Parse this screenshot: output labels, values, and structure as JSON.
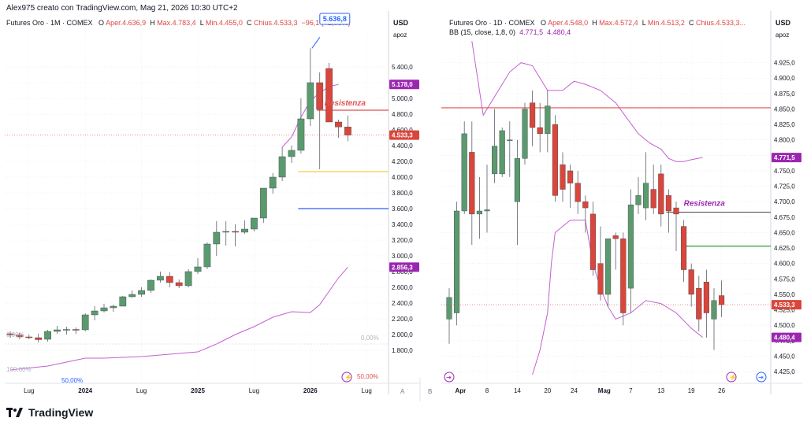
{
  "header": {
    "text": "Alex975 creato con TradingView.com, Mag 21, 2026 10:30 UTC+2"
  },
  "brand": {
    "name": "TradingView"
  },
  "colors": {
    "up": "#5b9a6e",
    "down": "#d9463b",
    "bb": "#c45fd1",
    "res": "#e05252",
    "tag_res": "#9b27b0"
  },
  "left": {
    "legend": {
      "symbol": "Futures Oro · 1M · COMEX",
      "o_label": "O",
      "o": "Aper.4.636,9",
      "h_label": "H",
      "h": "Max.4.783,4",
      "l_label": "L",
      "l": "Min.4.455,0",
      "c_label": "C",
      "c": "Chius.4.533,3",
      "chg": "−96,1 (−2,08%)"
    },
    "currency": "USD",
    "scale_mode": "apoz",
    "res_label": "Resistenza",
    "top_tag": "5.636,8",
    "badges": {
      "price": "4.533,3",
      "bb_upper": "5.178,0",
      "bb_lower": "2.856,3"
    },
    "pct": {
      "p0_left": "0,00%",
      "p0_right": "0,00%",
      "p100": "100,00%",
      "p50_bottom": "50,00%",
      "p50_right": "50,00%"
    },
    "axis_bottom": "A",
    "chart_data": {
      "type": "candlestick",
      "title": "Futures Oro · 1M · COMEX",
      "timeframe": "1M",
      "ylim": [
        1600,
        5800
      ],
      "yticks": [
        1800,
        2000,
        2200,
        2400,
        2600,
        2800,
        3000,
        3200,
        3400,
        3600,
        3800,
        4000,
        4200,
        4400,
        4600,
        4800,
        5000,
        5200,
        5400
      ],
      "ytick_labels": [
        "1.800,0",
        "2.000,0",
        "2.200,0",
        "2.400,0",
        "2.600,0",
        "2.800,0",
        "3.000,0",
        "3.200,0",
        "3.400,0",
        "3.600,0",
        "3.800,0",
        "4.000,0",
        "4.200,0",
        "4.400,0",
        "4.600,0",
        "4.800,0",
        "5.000,0",
        "5.200,0",
        "5.400,0"
      ],
      "xticks": [
        {
          "i": 2,
          "label": "Lug"
        },
        {
          "i": 8,
          "label": "2024"
        },
        {
          "i": 14,
          "label": "Lug"
        },
        {
          "i": 20,
          "label": "2025"
        },
        {
          "i": 26,
          "label": "Lug"
        },
        {
          "i": 32,
          "label": "2026"
        },
        {
          "i": 38,
          "label": "Lug"
        }
      ],
      "candles": [
        {
          "o": 2010,
          "h": 2040,
          "l": 1960,
          "c": 1995
        },
        {
          "o": 1995,
          "h": 2020,
          "l": 1940,
          "c": 1970
        },
        {
          "o": 1970,
          "h": 2000,
          "l": 1940,
          "c": 1965
        },
        {
          "o": 1960,
          "h": 2010,
          "l": 1900,
          "c": 1935
        },
        {
          "o": 1940,
          "h": 2060,
          "l": 1910,
          "c": 2040
        },
        {
          "o": 2040,
          "h": 2110,
          "l": 2010,
          "c": 2060
        },
        {
          "o": 2060,
          "h": 2100,
          "l": 2000,
          "c": 2065
        },
        {
          "o": 2065,
          "h": 2090,
          "l": 2010,
          "c": 2060
        },
        {
          "o": 2060,
          "h": 2270,
          "l": 2040,
          "c": 2250
        },
        {
          "o": 2250,
          "h": 2360,
          "l": 2180,
          "c": 2300
        },
        {
          "o": 2300,
          "h": 2390,
          "l": 2280,
          "c": 2340
        },
        {
          "o": 2340,
          "h": 2380,
          "l": 2290,
          "c": 2360
        },
        {
          "o": 2360,
          "h": 2490,
          "l": 2360,
          "c": 2480
        },
        {
          "o": 2480,
          "h": 2560,
          "l": 2470,
          "c": 2510
        },
        {
          "o": 2510,
          "h": 2600,
          "l": 2480,
          "c": 2560
        },
        {
          "o": 2560,
          "h": 2700,
          "l": 2530,
          "c": 2690
        },
        {
          "o": 2690,
          "h": 2800,
          "l": 2660,
          "c": 2740
        },
        {
          "o": 2740,
          "h": 2790,
          "l": 2600,
          "c": 2660
        },
        {
          "o": 2660,
          "h": 2700,
          "l": 2590,
          "c": 2620
        },
        {
          "o": 2620,
          "h": 2830,
          "l": 2600,
          "c": 2800
        },
        {
          "o": 2800,
          "h": 2970,
          "l": 2770,
          "c": 2860
        },
        {
          "o": 2860,
          "h": 3170,
          "l": 2830,
          "c": 3150
        },
        {
          "o": 3150,
          "h": 3440,
          "l": 3000,
          "c": 3300
        },
        {
          "o": 3300,
          "h": 3440,
          "l": 3130,
          "c": 3310
        },
        {
          "o": 3310,
          "h": 3400,
          "l": 3120,
          "c": 3300
        },
        {
          "o": 3300,
          "h": 3450,
          "l": 3280,
          "c": 3340
        },
        {
          "o": 3340,
          "h": 3480,
          "l": 3310,
          "c": 3480
        },
        {
          "o": 3480,
          "h": 3850,
          "l": 3420,
          "c": 3860
        },
        {
          "o": 3860,
          "h": 4050,
          "l": 3790,
          "c": 4000
        },
        {
          "o": 4000,
          "h": 4380,
          "l": 3950,
          "c": 4260
        },
        {
          "o": 4260,
          "h": 4400,
          "l": 4180,
          "c": 4340
        },
        {
          "o": 4340,
          "h": 5000,
          "l": 4300,
          "c": 4740
        },
        {
          "o": 4740,
          "h": 5636.8,
          "l": 4650,
          "c": 5200
        },
        {
          "o": 5200,
          "h": 5330,
          "l": 4100,
          "c": 4860
        },
        {
          "o": 5380,
          "h": 5450,
          "l": 4700,
          "c": 4700
        },
        {
          "o": 4700,
          "h": 4730,
          "l": 4500,
          "c": 4636.9
        },
        {
          "o": 4636.9,
          "h": 4783.4,
          "l": 4455.0,
          "c": 4533.3
        }
      ],
      "bb_upper": [
        {
          "i": 29,
          "v": 4380
        },
        {
          "i": 30,
          "v": 4510
        },
        {
          "i": 31,
          "v": 4760
        },
        {
          "i": 32,
          "v": 4970
        },
        {
          "i": 33,
          "v": 5070
        },
        {
          "i": 34,
          "v": 5150
        },
        {
          "i": 35,
          "v": 5178
        }
      ],
      "bb_lower": [
        {
          "i": 0,
          "v": 1550
        },
        {
          "i": 4,
          "v": 1600
        },
        {
          "i": 8,
          "v": 1700
        },
        {
          "i": 10,
          "v": 1700
        },
        {
          "i": 14,
          "v": 1720
        },
        {
          "i": 18,
          "v": 1760
        },
        {
          "i": 20,
          "v": 1780
        },
        {
          "i": 22,
          "v": 1880
        },
        {
          "i": 24,
          "v": 2000
        },
        {
          "i": 26,
          "v": 2100
        },
        {
          "i": 28,
          "v": 2220
        },
        {
          "i": 30,
          "v": 2290
        },
        {
          "i": 32,
          "v": 2280
        },
        {
          "i": 33,
          "v": 2380
        },
        {
          "i": 34,
          "v": 2550
        },
        {
          "i": 35,
          "v": 2720
        },
        {
          "i": 36,
          "v": 2856.3
        }
      ],
      "hlines": [
        {
          "name": "Resistenza",
          "value": 4850,
          "color": "#e05252",
          "from_i": 33
        },
        {
          "value": 4070,
          "color": "#f2c94c",
          "from_i": 31
        },
        {
          "value": 3600,
          "color": "#2962ff",
          "from_i": 31
        }
      ]
    }
  },
  "right": {
    "legend": {
      "symbol": "Futures Oro · 1D · COMEX",
      "o_label": "O",
      "o": "Aper.4.548,0",
      "h_label": "H",
      "h": "Max.4.572,4",
      "l_label": "L",
      "l": "Min.4.513,2",
      "c_label": "C",
      "c": "Chius.4.533,3...",
      "bb_label": "BB (15, close, 1,8, 0)",
      "bb_v1": "4.771,5",
      "bb_v2": "4.480,4"
    },
    "currency": "USD",
    "scale_mode": "apoz",
    "res_label": "Resistenza",
    "badges": {
      "price": "4.533,3",
      "bb_upper": "4.771,5",
      "bb_lower": "4.480,4"
    },
    "axis_bottom": "B",
    "chart_data": {
      "type": "candlestick",
      "title": "Futures Oro · 1D · COMEX",
      "timeframe": "1D",
      "ylim": [
        4420,
        4950
      ],
      "yticks": [
        4425,
        4450,
        4475,
        4500,
        4525,
        4550,
        4575,
        4600,
        4625,
        4650,
        4675,
        4700,
        4725,
        4750,
        4775,
        4800,
        4825,
        4850,
        4875,
        4900,
        4925
      ],
      "ytick_labels": [
        "4.425,0",
        "4.450,0",
        "4.475,0",
        "4.500,0",
        "4.525,0",
        "4.550,0",
        "4.575,0",
        "4.600,0",
        "4.625,0",
        "4.650,0",
        "4.675,0",
        "4.700,0",
        "4.725,0",
        "4.750,0",
        "4.775,0",
        "4.800,0",
        "4.825,0",
        "4.850,0",
        "4.875,0",
        "4.900,0",
        "4.925,0"
      ],
      "xticks": [
        {
          "i": 1.5,
          "label": "Apr"
        },
        {
          "i": 5,
          "label": "8"
        },
        {
          "i": 9,
          "label": "14"
        },
        {
          "i": 13,
          "label": "20"
        },
        {
          "i": 16.5,
          "label": "24"
        },
        {
          "i": 20.5,
          "label": "Mag"
        },
        {
          "i": 24,
          "label": "7"
        },
        {
          "i": 28,
          "label": "13"
        },
        {
          "i": 32,
          "label": "19"
        },
        {
          "i": 36,
          "label": "26"
        }
      ],
      "candles": [
        {
          "o": 4510,
          "h": 4560,
          "l": 4470,
          "c": 4545
        },
        {
          "o": 4520,
          "h": 4700,
          "l": 4500,
          "c": 4685
        },
        {
          "o": 4685,
          "h": 4830,
          "l": 4680,
          "c": 4810
        },
        {
          "o": 4780,
          "h": 4830,
          "l": 4630,
          "c": 4680
        },
        {
          "o": 4680,
          "h": 4740,
          "l": 4640,
          "c": 4685
        },
        {
          "o": 4685,
          "h": 4760,
          "l": 4650,
          "c": 4687
        },
        {
          "o": 4745,
          "h": 4850,
          "l": 4730,
          "c": 4790
        },
        {
          "o": 4745,
          "h": 4820,
          "l": 4740,
          "c": 4815
        },
        {
          "o": 4800,
          "h": 4830,
          "l": 4740,
          "c": 4800
        },
        {
          "o": 4700,
          "h": 4800,
          "l": 4630,
          "c": 4770
        },
        {
          "o": 4770,
          "h": 4860,
          "l": 4760,
          "c": 4850
        },
        {
          "o": 4860,
          "h": 4880,
          "l": 4790,
          "c": 4820
        },
        {
          "o": 4820,
          "h": 4860,
          "l": 4780,
          "c": 4810
        },
        {
          "o": 4810,
          "h": 4880,
          "l": 4780,
          "c": 4855
        },
        {
          "o": 4825,
          "h": 4840,
          "l": 4700,
          "c": 4710
        },
        {
          "o": 4760,
          "h": 4780,
          "l": 4700,
          "c": 4720
        },
        {
          "o": 4750,
          "h": 4760,
          "l": 4690,
          "c": 4730
        },
        {
          "o": 4730,
          "h": 4750,
          "l": 4680,
          "c": 4700
        },
        {
          "o": 4700,
          "h": 4710,
          "l": 4650,
          "c": 4690
        },
        {
          "o": 4680,
          "h": 4700,
          "l": 4580,
          "c": 4590
        },
        {
          "o": 4600,
          "h": 4660,
          "l": 4540,
          "c": 4550
        },
        {
          "o": 4550,
          "h": 4630,
          "l": 4530,
          "c": 4640
        },
        {
          "o": 4645,
          "h": 4650,
          "l": 4590,
          "c": 4640
        },
        {
          "o": 4640,
          "h": 4650,
          "l": 4500,
          "c": 4520
        },
        {
          "o": 4560,
          "h": 4720,
          "l": 4520,
          "c": 4695
        },
        {
          "o": 4695,
          "h": 4740,
          "l": 4680,
          "c": 4710
        },
        {
          "o": 4690,
          "h": 4780,
          "l": 4670,
          "c": 4730
        },
        {
          "o": 4720,
          "h": 4760,
          "l": 4680,
          "c": 4690
        },
        {
          "o": 4745,
          "h": 4760,
          "l": 4660,
          "c": 4680
        },
        {
          "o": 4710,
          "h": 4720,
          "l": 4650,
          "c": 4685
        },
        {
          "o": 4690,
          "h": 4700,
          "l": 4620,
          "c": 4680
        },
        {
          "o": 4660,
          "h": 4670,
          "l": 4570,
          "c": 4590
        },
        {
          "o": 4590,
          "h": 4600,
          "l": 4530,
          "c": 4550
        },
        {
          "o": 4560,
          "h": 4580,
          "l": 4490,
          "c": 4510
        },
        {
          "o": 4570,
          "h": 4590,
          "l": 4480,
          "c": 4520
        },
        {
          "o": 4510,
          "h": 4560,
          "l": 4460,
          "c": 4540
        },
        {
          "o": 4548.0,
          "h": 4572.4,
          "l": 4513.2,
          "c": 4533.3
        }
      ],
      "bb_upper": [
        {
          "i": 3,
          "v": 4960
        },
        {
          "i": 4.5,
          "v": 4840
        },
        {
          "i": 6,
          "v": 4870
        },
        {
          "i": 8,
          "v": 4910
        },
        {
          "i": 9.5,
          "v": 4925
        },
        {
          "i": 11,
          "v": 4920
        },
        {
          "i": 13,
          "v": 4880
        },
        {
          "i": 15,
          "v": 4880
        },
        {
          "i": 16.5,
          "v": 4895
        },
        {
          "i": 18,
          "v": 4890
        },
        {
          "i": 20,
          "v": 4880
        },
        {
          "i": 22,
          "v": 4860
        },
        {
          "i": 23.5,
          "v": 4835
        },
        {
          "i": 25,
          "v": 4810
        },
        {
          "i": 26.5,
          "v": 4795
        },
        {
          "i": 28,
          "v": 4785
        },
        {
          "i": 29,
          "v": 4770
        },
        {
          "i": 30,
          "v": 4765
        },
        {
          "i": 31,
          "v": 4765
        },
        {
          "i": 32,
          "v": 4768
        },
        {
          "i": 33.5,
          "v": 4771.5
        }
      ],
      "bb_lower": [
        {
          "i": 11,
          "v": 4420
        },
        {
          "i": 12,
          "v": 4460
        },
        {
          "i": 13,
          "v": 4520
        },
        {
          "i": 13.5,
          "v": 4600
        },
        {
          "i": 14,
          "v": 4650
        },
        {
          "i": 16,
          "v": 4670
        },
        {
          "i": 18,
          "v": 4670
        },
        {
          "i": 19,
          "v": 4600
        },
        {
          "i": 20,
          "v": 4560
        },
        {
          "i": 21,
          "v": 4530
        },
        {
          "i": 22,
          "v": 4510
        },
        {
          "i": 24,
          "v": 4520
        },
        {
          "i": 26,
          "v": 4540
        },
        {
          "i": 28,
          "v": 4535
        },
        {
          "i": 30,
          "v": 4520
        },
        {
          "i": 32,
          "v": 4495
        },
        {
          "i": 33.5,
          "v": 4480.4
        }
      ],
      "hlines": [
        {
          "value": 4852,
          "color": "#e05252",
          "from_i": -0.5
        },
        {
          "name": "Resistenza",
          "value": 4683,
          "color": "#555555",
          "from_i": 29
        },
        {
          "value": 4628,
          "color": "#2e9a3c",
          "from_i": 31
        }
      ]
    }
  }
}
